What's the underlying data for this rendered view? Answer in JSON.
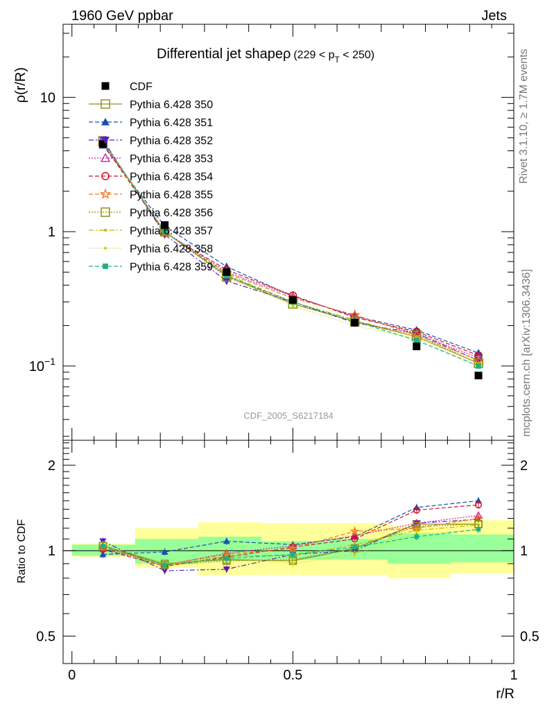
{
  "header": {
    "left": "1960 GeV ppbar",
    "right": "Jets",
    "side_top": "Rivet 3.1.10, ≥ 1.7M events",
    "side_bottom": "mcplots.cern.ch [arXiv:1306.3436]"
  },
  "plot_title": "Differential jet shapeρ",
  "plot_title_suffix": "(229 < p",
  "plot_title_sub": "T",
  "plot_title_end": " < 250)",
  "analysis_tag": "CDF_2005_S6217184",
  "chart_data": [
    {
      "type": "line",
      "title": "Differential jet shapeρ (229 < pT < 250)",
      "xlabel": "r/R",
      "ylabel": "ρ(r/R)",
      "yscale": "log",
      "xlim": [
        -0.02,
        1.0
      ],
      "ylim": [
        0.028,
        35
      ],
      "yticks": [
        {
          "v": 0.1,
          "base": "10",
          "exp": "−1"
        },
        {
          "v": 1,
          "label": "1"
        },
        {
          "v": 10,
          "label": "10"
        }
      ],
      "legend_position": "top-left",
      "x": [
        0.07,
        0.21,
        0.35,
        0.5,
        0.64,
        0.78,
        0.92
      ],
      "data": {
        "name": "CDF",
        "color": "#000000",
        "values": [
          4.5,
          1.12,
          0.5,
          0.31,
          0.21,
          0.14,
          0.085
        ]
      },
      "series": [
        {
          "name": "Pythia 6.428 350",
          "color": "#8f8f22",
          "marker": "open-square",
          "dash": "solid",
          "values": [
            4.7,
            1.0,
            0.47,
            0.29,
            0.215,
            0.165,
            0.105
          ]
        },
        {
          "name": "Pythia 6.428 351",
          "color": "#1750b0",
          "marker": "triangle-up",
          "dash": "6,3",
          "values": [
            4.4,
            1.1,
            0.55,
            0.33,
            0.235,
            0.185,
            0.125
          ]
        },
        {
          "name": "Pythia 6.428 352",
          "color": "#5a1eb0",
          "marker": "triangle-down",
          "dash": "7,3,2,3",
          "values": [
            4.85,
            0.95,
            0.43,
            0.3,
            0.21,
            0.175,
            0.11
          ]
        },
        {
          "name": "Pythia 6.428 353",
          "color": "#c21ca8",
          "marker": "open-triangle",
          "dash": "2,2",
          "values": [
            4.6,
            1.0,
            0.5,
            0.33,
            0.235,
            0.175,
            0.115
          ]
        },
        {
          "name": "Pythia 6.428 354",
          "color": "#d0102a",
          "marker": "open-circle",
          "dash": "6,3",
          "values": [
            4.5,
            0.98,
            0.52,
            0.335,
            0.23,
            0.18,
            0.12
          ]
        },
        {
          "name": "Pythia 6.428 355",
          "color": "#ee7722",
          "marker": "open-star",
          "dash": "6,3",
          "values": [
            4.65,
            0.99,
            0.49,
            0.32,
            0.24,
            0.17,
            0.11
          ]
        },
        {
          "name": "Pythia 6.428 356",
          "color": "#8f8f10",
          "marker": "open-square",
          "dash": "2,2",
          "values": [
            4.7,
            1.0,
            0.46,
            0.29,
            0.215,
            0.17,
            0.105
          ]
        },
        {
          "name": "Pythia 6.428 357",
          "color": "#c8b400",
          "marker": "dot",
          "dash": "7,3,2,3",
          "values": [
            4.7,
            0.99,
            0.48,
            0.3,
            0.22,
            0.165,
            0.105
          ]
        },
        {
          "name": "Pythia 6.428 358",
          "color": "#c8d400",
          "marker": "dot",
          "dash": "1,2",
          "values": [
            4.75,
            1.0,
            0.47,
            0.28,
            0.2,
            0.16,
            0.1
          ]
        },
        {
          "name": "Pythia 6.428 359",
          "color": "#20b080",
          "marker": "square",
          "dash": "6,3",
          "values": [
            4.7,
            1.0,
            0.47,
            0.3,
            0.215,
            0.155,
            0.1
          ]
        }
      ]
    },
    {
      "type": "line",
      "title": "",
      "xlabel": "r/R",
      "ylabel": "Ratio to CDF",
      "yscale": "log",
      "xlim": [
        -0.02,
        1.0
      ],
      "ylim": [
        0.4,
        2.45
      ],
      "yticks": [
        {
          "v": 0.5,
          "label": "0.5"
        },
        {
          "v": 1,
          "label": "1"
        },
        {
          "v": 2,
          "label": "2"
        }
      ],
      "xticks": [
        {
          "v": 0,
          "label": "0"
        },
        {
          "v": 0.5,
          "label": "0.5"
        },
        {
          "v": 1,
          "label": "1"
        }
      ],
      "bands": [
        {
          "x0": 0.0,
          "x1": 0.143,
          "inner": [
            0.96,
            1.05
          ],
          "outer": [
            0.95,
            1.06
          ]
        },
        {
          "x0": 0.143,
          "x1": 0.286,
          "inner": [
            0.9,
            1.1
          ],
          "outer": [
            0.87,
            1.2
          ]
        },
        {
          "x0": 0.286,
          "x1": 0.429,
          "inner": [
            0.92,
            1.12
          ],
          "outer": [
            0.82,
            1.26
          ]
        },
        {
          "x0": 0.429,
          "x1": 0.571,
          "inner": [
            0.93,
            1.08
          ],
          "outer": [
            0.82,
            1.25
          ]
        },
        {
          "x0": 0.571,
          "x1": 0.714,
          "inner": [
            0.93,
            1.1
          ],
          "outer": [
            0.82,
            1.25
          ]
        },
        {
          "x0": 0.714,
          "x1": 0.857,
          "inner": [
            0.9,
            1.15
          ],
          "outer": [
            0.8,
            1.22
          ]
        },
        {
          "x0": 0.857,
          "x1": 1.0,
          "inner": [
            0.91,
            1.14
          ],
          "outer": [
            0.83,
            1.28
          ]
        }
      ],
      "ratios": [
        [
          1.04,
          0.9,
          0.93,
          0.92,
          1.02,
          1.24,
          1.24
        ],
        [
          0.97,
          0.99,
          1.08,
          1.05,
          1.12,
          1.42,
          1.5
        ],
        [
          1.08,
          0.85,
          0.86,
          0.97,
          1.0,
          1.25,
          1.29
        ],
        [
          1.02,
          0.89,
          0.98,
          1.04,
          1.13,
          1.25,
          1.33
        ],
        [
          1.01,
          0.88,
          0.95,
          1.03,
          1.1,
          1.39,
          1.45
        ],
        [
          1.03,
          0.89,
          0.97,
          1.02,
          1.17,
          1.2,
          1.3
        ],
        [
          1.04,
          0.89,
          0.92,
          0.93,
          1.02,
          1.22,
          1.24
        ],
        [
          1.04,
          0.88,
          0.96,
          0.96,
          1.05,
          1.18,
          1.23
        ],
        [
          1.05,
          0.9,
          0.94,
          0.9,
          0.97,
          1.15,
          1.18
        ],
        [
          1.04,
          0.89,
          0.94,
          0.97,
          1.03,
          1.12,
          1.19
        ]
      ]
    }
  ]
}
